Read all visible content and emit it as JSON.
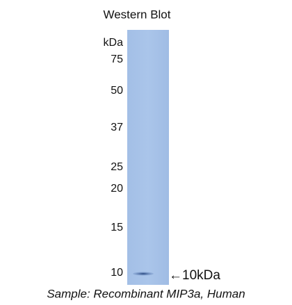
{
  "header": {
    "title": "Western Blot"
  },
  "blot": {
    "unit": "kDa",
    "markers": [
      "75",
      "50",
      "37",
      "25",
      "20",
      "15",
      "10"
    ],
    "band_label": "←10kDa"
  },
  "caption": "Sample: Recombinant MIP3a, Human"
}
